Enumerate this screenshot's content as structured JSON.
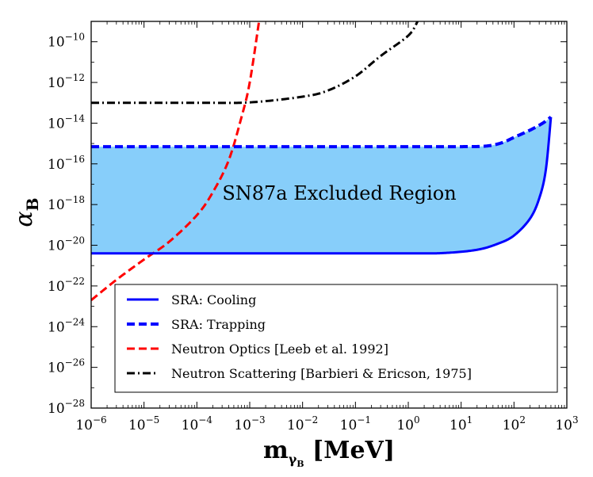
{
  "chart_data": {
    "type": "line",
    "xlabel_main": "m",
    "xlabel_sub": "γ",
    "xlabel_subsub": "B",
    "xlabel_unit": " [MeV]",
    "ylabel_main": "α",
    "ylabel_sub": "B",
    "x_scale": "log",
    "y_scale": "log",
    "xlim": [
      1e-06,
      1000
    ],
    "ylim": [
      1e-28,
      1e-09
    ],
    "x_ticks": [
      {
        "base": "10",
        "exp": "−6",
        "value": 1e-06
      },
      {
        "base": "10",
        "exp": "−5",
        "value": 1e-05
      },
      {
        "base": "10",
        "exp": "−4",
        "value": 0.0001
      },
      {
        "base": "10",
        "exp": "−3",
        "value": 0.001
      },
      {
        "base": "10",
        "exp": "−2",
        "value": 0.01
      },
      {
        "base": "10",
        "exp": "−1",
        "value": 0.1
      },
      {
        "base": "10",
        "exp": "0",
        "value": 1
      },
      {
        "base": "10",
        "exp": "1",
        "value": 10
      },
      {
        "base": "10",
        "exp": "2",
        "value": 100
      },
      {
        "base": "10",
        "exp": "3",
        "value": 1000
      }
    ],
    "y_ticks": [
      {
        "base": "10",
        "exp": "−28",
        "value": 1e-28
      },
      {
        "base": "10",
        "exp": "−26",
        "value": 1e-26
      },
      {
        "base": "10",
        "exp": "−24",
        "value": 1e-24
      },
      {
        "base": "10",
        "exp": "−22",
        "value": 1e-22
      },
      {
        "base": "10",
        "exp": "−20",
        "value": 1e-20
      },
      {
        "base": "10",
        "exp": "−18",
        "value": 1e-18
      },
      {
        "base": "10",
        "exp": "−16",
        "value": 1e-16
      },
      {
        "base": "10",
        "exp": "−14",
        "value": 1e-14
      },
      {
        "base": "10",
        "exp": "−12",
        "value": 1e-12
      },
      {
        "base": "10",
        "exp": "−10",
        "value": 1e-10
      }
    ],
    "annotation": "SN87a Excluded Region",
    "region_color": "#87cefa",
    "legend_position": "lower-right",
    "series": [
      {
        "name": "SRA: Cooling",
        "color": "#0000ff",
        "style": "solid",
        "x": [
          1e-06,
          0.001,
          1,
          5,
          20,
          50,
          100,
          200,
          300,
          400,
          500
        ],
        "y": [
          4e-21,
          4e-21,
          4e-21,
          4.2e-21,
          6e-21,
          1.2e-20,
          3e-20,
          2e-19,
          2e-18,
          5e-17,
          2e-14
        ]
      },
      {
        "name": "SRA: Trapping",
        "color": "#0000ff",
        "style": "dashed",
        "x": [
          1e-06,
          0.001,
          1,
          10,
          30,
          60,
          100,
          200,
          350,
          500
        ],
        "y": [
          7e-16,
          7e-16,
          7e-16,
          7e-16,
          7.5e-16,
          1.1e-15,
          2e-15,
          4.5e-15,
          1e-14,
          2e-14
        ]
      },
      {
        "name": "Neutron Optics [Leeb et al. 1992]",
        "color": "#ff0000",
        "style": "dashed",
        "x": [
          1e-06,
          3e-06,
          1e-05,
          3e-05,
          0.0001,
          0.0002,
          0.0004,
          0.0007,
          0.001,
          0.0015
        ],
        "y": [
          2e-23,
          2e-22,
          2e-21,
          1.5e-20,
          3e-19,
          4e-18,
          1.5e-16,
          2e-14,
          1e-12,
          1e-09
        ]
      },
      {
        "name": "Neutron Scattering [Barbieri & Ericson, 1975]",
        "color": "#000000",
        "style": "dashdot",
        "x": [
          1e-06,
          0.0001,
          0.001,
          0.01,
          0.03,
          0.1,
          0.3,
          1,
          1.5
        ],
        "y": [
          1e-13,
          1e-13,
          1.05e-13,
          2e-13,
          4e-13,
          2e-12,
          2e-11,
          2e-10,
          1e-09
        ]
      }
    ]
  }
}
